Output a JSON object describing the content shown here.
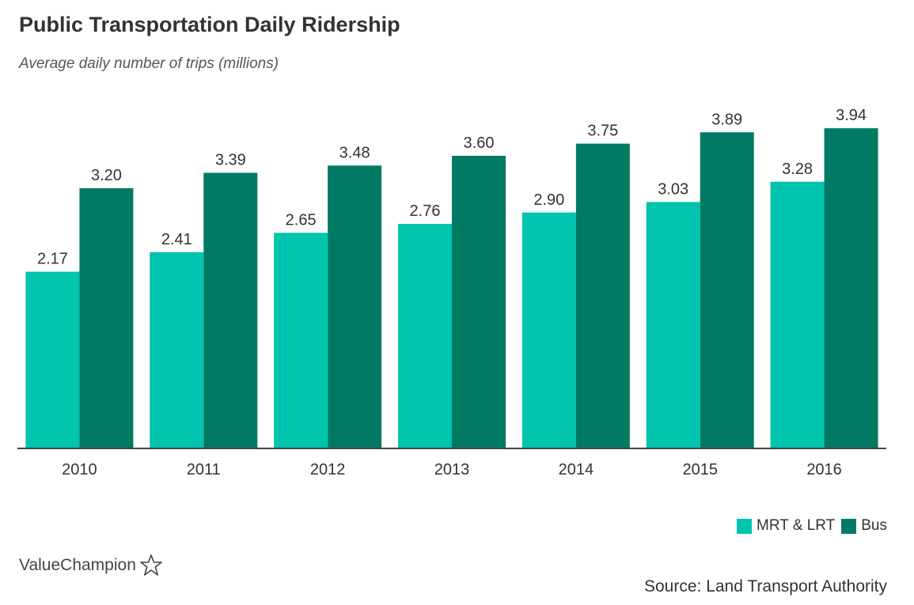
{
  "title": "Public Transportation Daily Ridership",
  "subtitle": "Average daily number of trips (millions)",
  "brand": "ValueChampion",
  "source": "Source: Land Transport Authority",
  "chart_data": {
    "type": "bar",
    "categories": [
      "2010",
      "2011",
      "2012",
      "2013",
      "2014",
      "2015",
      "2016"
    ],
    "series": [
      {
        "name": "MRT & LRT",
        "color": "#00c4ad",
        "values": [
          2.17,
          2.41,
          2.65,
          2.76,
          2.9,
          3.03,
          3.28
        ],
        "labels": [
          "2.17",
          "2.41",
          "2.65",
          "2.76",
          "2.90",
          "3.03",
          "3.28"
        ]
      },
      {
        "name": "Bus",
        "color": "#007a63",
        "values": [
          3.2,
          3.39,
          3.48,
          3.6,
          3.75,
          3.89,
          3.94
        ],
        "labels": [
          "3.20",
          "3.39",
          "3.48",
          "3.60",
          "3.75",
          "3.89",
          "3.94"
        ]
      }
    ],
    "title": "Public Transportation Daily Ridership",
    "xlabel": "",
    "ylabel": "",
    "ylim": [
      0,
      4.4
    ],
    "grid": false,
    "legend": "bottom-right"
  }
}
